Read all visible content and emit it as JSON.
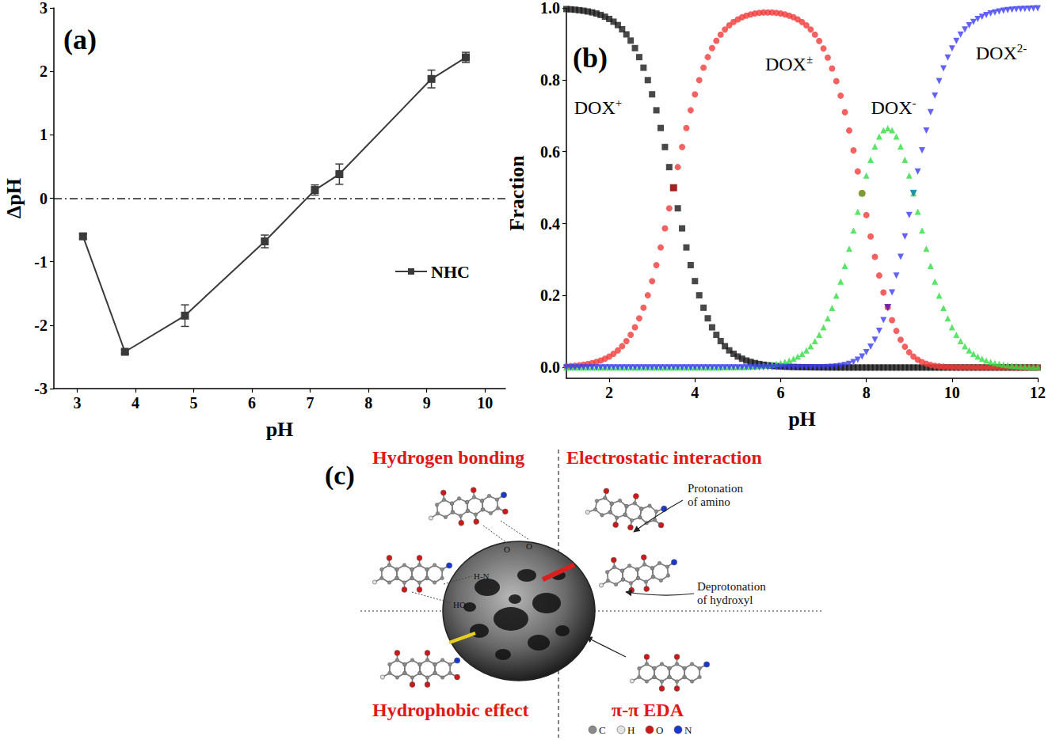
{
  "chart_data": [
    {
      "panel": "(a)",
      "type": "line",
      "x_label": "pH",
      "y_label": "ΔpH",
      "xlim": [
        2.6,
        10.35
      ],
      "xticks": [
        3,
        4,
        5,
        6,
        7,
        8,
        9,
        10
      ],
      "ylim": [
        -3,
        3
      ],
      "yticks": [
        -3,
        -2,
        -1,
        0,
        1,
        2,
        3
      ],
      "grid": false,
      "legend": "right",
      "x": [
        3.1,
        3.82,
        4.85,
        6.22,
        7.08,
        7.5,
        9.08,
        9.67
      ],
      "series": [
        {
          "name": "NHC",
          "color": "#3a3a3a",
          "marker": "square",
          "line_style": "solid",
          "values": [
            -0.6,
            -2.42,
            -1.85,
            -0.68,
            0.13,
            0.38,
            1.88,
            2.22
          ],
          "errors": [
            0.04,
            0.03,
            0.17,
            0.1,
            0.08,
            0.16,
            0.14,
            0.08
          ]
        }
      ],
      "reference_line": {
        "y": 0,
        "line_style": "dashdot"
      }
    },
    {
      "panel": "(b)",
      "type": "scatter",
      "x_label": "pH",
      "y_label": "Fraction",
      "xlim": [
        1,
        12
      ],
      "xticks": [
        2,
        4,
        6,
        8,
        10,
        12
      ],
      "ylim": [
        -0.03,
        1.0
      ],
      "yticks": [
        {
          "value": 0,
          "label": "0.0"
        },
        {
          "value": 0.2,
          "label": "0.2"
        },
        {
          "value": 0.4,
          "label": "0.4"
        },
        {
          "value": 0.6,
          "label": "0.6"
        },
        {
          "value": 0.8,
          "label": "0.8"
        },
        {
          "value": 1.0,
          "label": "1.0"
        }
      ],
      "grid": false,
      "x": [
        1,
        1.1,
        1.2,
        1.3,
        1.4,
        1.5,
        1.6,
        1.7,
        1.8,
        1.9,
        2,
        2.1,
        2.2,
        2.3,
        2.4,
        2.5,
        2.6,
        2.7,
        2.8,
        2.9,
        3,
        3.1,
        3.2,
        3.3,
        3.4,
        3.5,
        3.6,
        3.7,
        3.8,
        3.9,
        4,
        4.1,
        4.2,
        4.3,
        4.4,
        4.5,
        4.6,
        4.7,
        4.8,
        4.9,
        5,
        5.1,
        5.2,
        5.3,
        5.4,
        5.5,
        5.6,
        5.7,
        5.8,
        5.9,
        6,
        6.1,
        6.2,
        6.3,
        6.4,
        6.5,
        6.6,
        6.7,
        6.8,
        6.9,
        7,
        7.1,
        7.2,
        7.3,
        7.4,
        7.5,
        7.6,
        7.7,
        7.8,
        7.9,
        8,
        8.1,
        8.2,
        8.3,
        8.4,
        8.5,
        8.6,
        8.7,
        8.8,
        8.9,
        9,
        9.1,
        9.2,
        9.3,
        9.4,
        9.5,
        9.6,
        9.7,
        9.8,
        9.9,
        10,
        10.1,
        10.2,
        10.3,
        10.4,
        10.5,
        10.6,
        10.7,
        10.8,
        10.9,
        11,
        11.1,
        11.2,
        11.3,
        11.4,
        11.5,
        11.6,
        11.7,
        11.8,
        11.9,
        12
      ],
      "series": [
        {
          "name": "DOX+",
          "color": "#1a1a1a",
          "marker": "square",
          "values": [
            0.9968,
            0.996,
            0.995,
            0.9937,
            0.9921,
            0.9901,
            0.9876,
            0.9844,
            0.9805,
            0.9755,
            0.9693,
            0.9617,
            0.9523,
            0.9406,
            0.9264,
            0.9091,
            0.8882,
            0.8632,
            0.8337,
            0.7992,
            0.7597,
            0.7153,
            0.6661,
            0.6131,
            0.5573,
            0.5,
            0.4427,
            0.3869,
            0.3339,
            0.2847,
            0.2403,
            0.2008,
            0.1663,
            0.1368,
            0.1118,
            0.0909,
            0.0736,
            0.0594,
            0.0477,
            0.0383,
            0.0306,
            0.0245,
            0.0195,
            0.0156,
            0.0124,
            0.0099,
            0.0078,
            0.0062,
            0.0049,
            0.0039,
            0.0031,
            0.0025,
            0.002,
            0.0015,
            0.0012,
            0.001,
            0.0008,
            0.0006,
            0.0005,
            0.0004,
            0.0003,
            0.0002,
            0.0002,
            0.0001,
            0.0001,
            0.0001,
            0,
            0,
            0,
            0,
            0,
            0,
            0,
            0,
            0,
            0,
            0,
            0,
            0,
            0,
            0,
            0,
            0,
            0,
            0,
            0,
            0,
            0,
            0,
            0,
            0,
            0,
            0,
            0,
            0,
            0,
            0,
            0,
            0,
            0,
            0,
            0,
            0,
            0,
            0,
            0,
            0,
            0,
            0,
            0,
            0
          ]
        },
        {
          "name": "DOX±",
          "color": "#f03a3a",
          "marker": "circle",
          "values": [
            0.0032,
            0.004,
            0.005,
            0.0063,
            0.0079,
            0.0099,
            0.0124,
            0.0156,
            0.0195,
            0.0245,
            0.0307,
            0.0383,
            0.0477,
            0.0594,
            0.0736,
            0.0909,
            0.1118,
            0.1368,
            0.1663,
            0.2008,
            0.2403,
            0.2847,
            0.3339,
            0.3869,
            0.4427,
            0.5,
            0.5573,
            0.6131,
            0.6661,
            0.7153,
            0.7597,
            0.7992,
            0.8337,
            0.8632,
            0.8882,
            0.9087,
            0.9259,
            0.94,
            0.9515,
            0.9608,
            0.9682,
            0.974,
            0.9785,
            0.982,
            0.9845,
            0.9862,
            0.9872,
            0.9875,
            0.9872,
            0.9862,
            0.9845,
            0.982,
            0.9785,
            0.974,
            0.9682,
            0.9607,
            0.9514,
            0.9399,
            0.9256,
            0.9082,
            0.8871,
            0.8618,
            0.8318,
            0.7966,
            0.756,
            0.7101,
            0.6591,
            0.6038,
            0.5452,
            0.4847,
            0.4239,
            0.3645,
            0.308,
            0.2558,
            0.2086,
            0.1672,
            0.1316,
            0.1018,
            0.0774,
            0.0578,
            0.0424,
            0.0306,
            0.0217,
            0.0152,
            0.0104,
            0.0071,
            0.0048,
            0.0032,
            0.0021,
            0.0014,
            0.0009,
            0.0006,
            0.0004,
            0.0002,
            0.0002,
            0.0001,
            0.0001,
            0,
            0,
            0,
            0,
            0,
            0,
            0,
            0,
            0,
            0,
            0,
            0,
            0,
            0
          ]
        },
        {
          "name": "DOX-",
          "color": "#33dd44",
          "marker": "triangle",
          "values": [
            0,
            0,
            0,
            0,
            0,
            0,
            0,
            0,
            0,
            0,
            0,
            0,
            0,
            0,
            0,
            0,
            0,
            0,
            0,
            0,
            0,
            0,
            0,
            0,
            0,
            0,
            0,
            0,
            0,
            0,
            0,
            0,
            0,
            0,
            0,
            0.0004,
            0.0005,
            0.0006,
            0.0008,
            0.001,
            0.0012,
            0.0015,
            0.002,
            0.0025,
            0.0031,
            0.0039,
            0.0049,
            0.0062,
            0.0078,
            0.0099,
            0.0124,
            0.0156,
            0.0195,
            0.0245,
            0.0306,
            0.0382,
            0.0477,
            0.0593,
            0.0735,
            0.0908,
            0.1117,
            0.1366,
            0.166,
            0.2001,
            0.2391,
            0.2827,
            0.3304,
            0.381,
            0.4331,
            0.4847,
            0.5337,
            0.5777,
            0.6146,
            0.6424,
            0.6597,
            0.6656,
            0.6597,
            0.6424,
            0.6146,
            0.5777,
            0.5337,
            0.4847,
            0.4331,
            0.381,
            0.3304,
            0.2827,
            0.2391,
            0.2001,
            0.166,
            0.1366,
            0.1117,
            0.0908,
            0.0735,
            0.0593,
            0.0477,
            0.0382,
            0.0306,
            0.0245,
            0.0196,
            0.0156,
            0.0124,
            0.0099,
            0.0079,
            0.0063,
            0.005,
            0.004,
            0.0032,
            0.0025,
            0.002,
            0.0016,
            0.0013
          ]
        },
        {
          "name": "DOX2-",
          "color": "#3b3bf5",
          "marker": "triangle_down",
          "values": [
            0,
            0,
            0,
            0,
            0,
            0,
            0,
            0,
            0,
            0,
            0,
            0,
            0,
            0,
            0,
            0,
            0,
            0,
            0,
            0,
            0,
            0,
            0,
            0,
            0,
            0,
            0,
            0,
            0,
            0,
            0,
            0,
            0,
            0,
            0,
            0,
            0,
            0,
            0,
            0,
            0,
            0,
            0,
            0,
            0,
            0,
            0,
            0,
            0,
            0,
            0,
            0,
            0,
            0,
            0,
            0.0001,
            0.0002,
            0.0002,
            0.0004,
            0.0006,
            0.0009,
            0.0014,
            0.0021,
            0.0032,
            0.0048,
            0.0071,
            0.0104,
            0.0152,
            0.0217,
            0.0306,
            0.0424,
            0.0578,
            0.0774,
            0.1018,
            0.1316,
            0.1672,
            0.2086,
            0.2558,
            0.308,
            0.3645,
            0.4239,
            0.4847,
            0.5452,
            0.6038,
            0.6591,
            0.7101,
            0.756,
            0.7966,
            0.8318,
            0.8618,
            0.8871,
            0.9082,
            0.9256,
            0.9399,
            0.9514,
            0.9607,
            0.9693,
            0.9755,
            0.9804,
            0.9844,
            0.9876,
            0.9901,
            0.9921,
            0.9937,
            0.995,
            0.996,
            0.9968,
            0.9975,
            0.998,
            0.9984,
            0.9987
          ]
        }
      ],
      "highlighted_points": [
        {
          "x": 3.5,
          "y": 0.5,
          "color": "#a01818",
          "marker": "square"
        },
        {
          "x": 7.9,
          "y": 0.4847,
          "color": "#7a9a2a",
          "marker": "circle"
        },
        {
          "x": 8.5,
          "y": 0.1672,
          "color": "#7a1aa0",
          "marker": "triangle_down"
        },
        {
          "x": 9.1,
          "y": 0.4847,
          "color": "#1a9aa0",
          "marker": "triangle_down"
        }
      ]
    }
  ],
  "diagram": {
    "panel": "(c)",
    "quadrants": {
      "top_left": "Hydrogen bonding",
      "top_right": "Electrostatic interaction",
      "bottom_left": "Hydrophobic effect",
      "bottom_right": "π-π EDA"
    },
    "annotations": [
      [
        "Protonation",
        "of amino"
      ],
      [
        "Deprotonation",
        "of hydroxyl"
      ]
    ],
    "bond_labels": [
      "O",
      "O",
      "H-N",
      "HO"
    ],
    "atom_legend": [
      {
        "symbol": "C",
        "color": "#8a8a8a"
      },
      {
        "symbol": "H",
        "color": "#e4e4e4"
      },
      {
        "symbol": "O",
        "color": "#d01818"
      },
      {
        "symbol": "N",
        "color": "#1838d0"
      }
    ]
  }
}
